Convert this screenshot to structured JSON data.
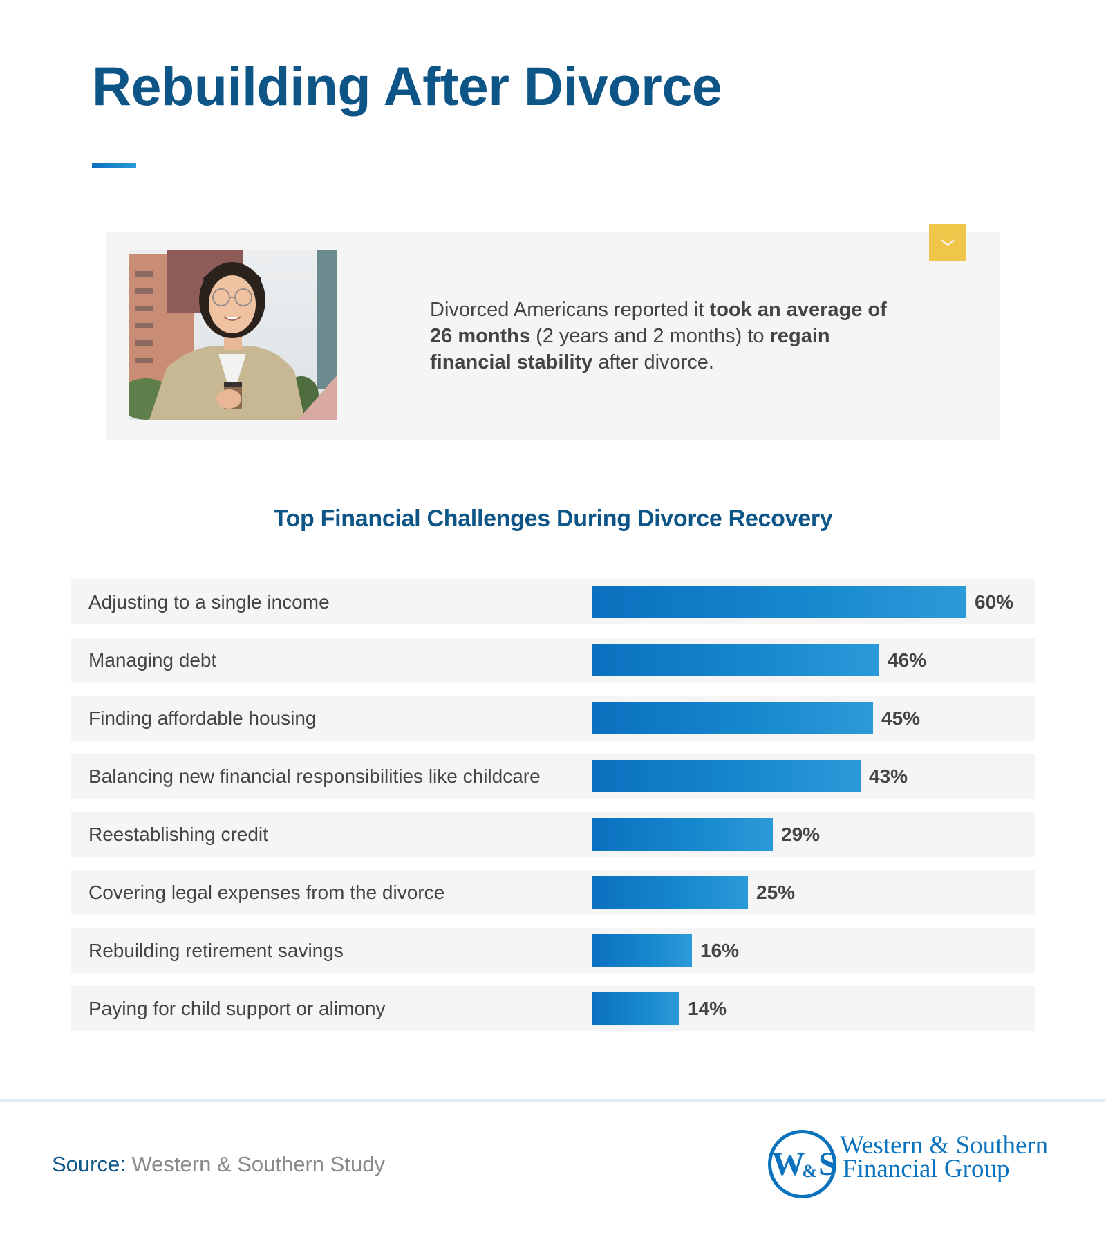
{
  "header": {
    "title": "Rebuilding After Divorce"
  },
  "stat_card": {
    "image_alt": "Smiling woman with glasses holding a coffee cup and tablet in a city",
    "text_parts": [
      {
        "text": "Divorced Americans reported it ",
        "bold": false
      },
      {
        "text": "took an average of 26 months",
        "bold": true
      },
      {
        "text": " (2 years and 2 months) to ",
        "bold": false
      },
      {
        "text": "regain financial stability",
        "bold": true
      },
      {
        "text": " after divorce.",
        "bold": false
      }
    ],
    "expand_icon": "chevron-down-icon"
  },
  "chart": {
    "title": "Top Financial Challenges During Divorce Recovery"
  },
  "chart_data": {
    "type": "bar",
    "orientation": "horizontal",
    "title": "Top Financial Challenges During Divorce Recovery",
    "xlabel": "",
    "ylabel": "",
    "categories": [
      "Adjusting to a single income",
      "Managing debt",
      "Finding affordable housing",
      "Balancing new financial responsibilities like childcare",
      "Reestablishing credit",
      "Covering legal expenses from the divorce",
      "Rebuilding retirement savings",
      "Paying for child support or alimony"
    ],
    "values": [
      60,
      46,
      45,
      43,
      29,
      25,
      16,
      14
    ],
    "value_labels": [
      "60%",
      "46%",
      "45%",
      "43%",
      "29%",
      "25%",
      "16%",
      "14%"
    ],
    "unit": "%",
    "xlim": [
      0,
      60
    ],
    "grid": false,
    "legend": "none",
    "bar_color_start": "#0a70bf",
    "bar_color_end": "#2a9ad9"
  },
  "footer": {
    "source_label": "Source:",
    "source_value": "Western & Southern Study",
    "logo_mark": "W&S",
    "logo_line1": "Western & Southern",
    "logo_line2": "Financial Group"
  },
  "colors": {
    "title": "#0d5587",
    "accent": "#0b73bd",
    "card_bg": "#f5f5f5",
    "expand_button": "#efc64a",
    "body_text": "#444444",
    "muted_text": "#8a8a8a"
  }
}
